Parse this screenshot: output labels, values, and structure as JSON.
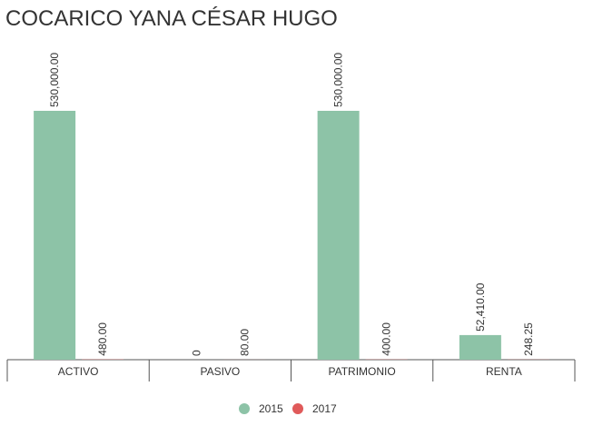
{
  "chart_data": {
    "type": "bar",
    "title": "COCARICO YANA CÉSAR HUGO",
    "categories": [
      "ACTIVO",
      "PASIVO",
      "PATRIMONIO",
      "RENTA"
    ],
    "series": [
      {
        "name": "2015",
        "color": "#8dc3a7",
        "values": [
          530000,
          0,
          530000,
          52410
        ],
        "value_labels": [
          "530,000.00",
          "0",
          "530,000.00",
          "52,410.00"
        ]
      },
      {
        "name": "2017",
        "color": "#e05a5a",
        "values": [
          480,
          80,
          400,
          248.25
        ],
        "value_labels": [
          "480.00",
          "80.00",
          "400.00",
          "248.25"
        ]
      }
    ],
    "legend": "bottom"
  }
}
